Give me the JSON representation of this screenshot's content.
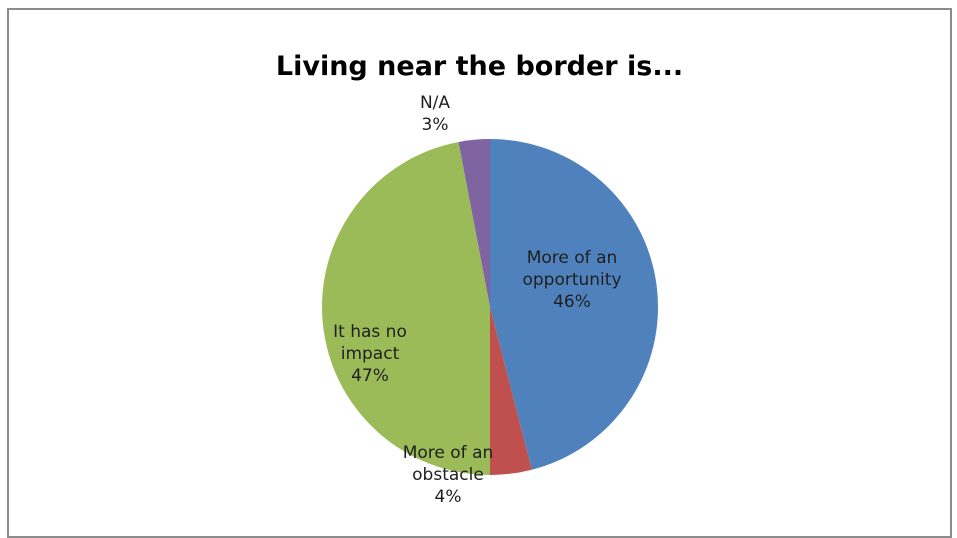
{
  "chart_data": {
    "type": "pie",
    "title": "Living near the border is...",
    "slices": [
      {
        "label_lines": [
          "More of an",
          "opportunity"
        ],
        "value": 46,
        "value_label": "46%",
        "color": "#4F81BD"
      },
      {
        "label_lines": [
          "More of an",
          "obstacle"
        ],
        "value": 4,
        "value_label": "4%",
        "color": "#C0504D"
      },
      {
        "label_lines": [
          "It has no",
          "impact"
        ],
        "value": 47,
        "value_label": "47%",
        "color": "#9BBB59"
      },
      {
        "label_lines": [
          "N/A"
        ],
        "value": 3,
        "value_label": "3%",
        "color": "#8064A2"
      }
    ],
    "legend": "none"
  }
}
